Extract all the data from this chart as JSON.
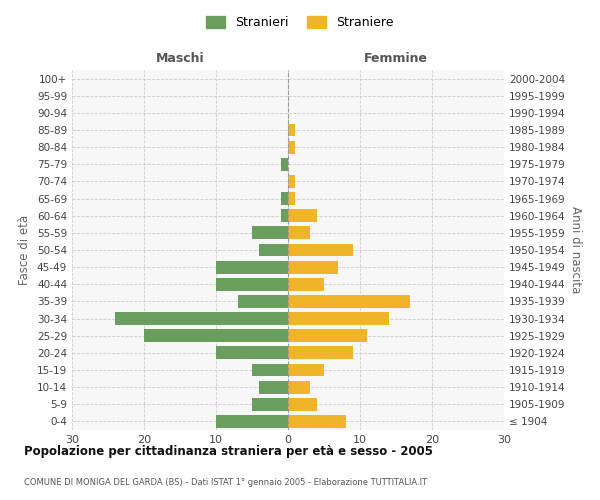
{
  "age_groups": [
    "100+",
    "95-99",
    "90-94",
    "85-89",
    "80-84",
    "75-79",
    "70-74",
    "65-69",
    "60-64",
    "55-59",
    "50-54",
    "45-49",
    "40-44",
    "35-39",
    "30-34",
    "25-29",
    "20-24",
    "15-19",
    "10-14",
    "5-9",
    "0-4"
  ],
  "birth_years": [
    "≤ 1904",
    "1905-1909",
    "1910-1914",
    "1915-1919",
    "1920-1924",
    "1925-1929",
    "1930-1934",
    "1935-1939",
    "1940-1944",
    "1945-1949",
    "1950-1954",
    "1955-1959",
    "1960-1964",
    "1965-1969",
    "1970-1974",
    "1975-1979",
    "1980-1984",
    "1985-1989",
    "1990-1994",
    "1995-1999",
    "2000-2004"
  ],
  "maschi": [
    0,
    0,
    0,
    0,
    0,
    1,
    0,
    1,
    1,
    5,
    4,
    10,
    10,
    7,
    24,
    20,
    10,
    5,
    4,
    5,
    10
  ],
  "femmine": [
    0,
    0,
    0,
    1,
    1,
    0,
    1,
    1,
    4,
    3,
    9,
    7,
    5,
    17,
    14,
    11,
    9,
    5,
    3,
    4,
    8
  ],
  "maschi_color": "#6a9e5f",
  "femmine_color": "#f0b429",
  "title": "Popolazione per cittadinanza straniera per età e sesso - 2005",
  "subtitle": "COMUNE DI MONIGA DEL GARDA (BS) - Dati ISTAT 1° gennaio 2005 - Elaborazione TUTTITALIA.IT",
  "xlabel_left": "Maschi",
  "xlabel_right": "Femmine",
  "ylabel_left": "Fasce di età",
  "ylabel_right": "Anni di nascita",
  "legend_labels": [
    "Stranieri",
    "Straniere"
  ],
  "xlim": 30,
  "background_color": "#ffffff",
  "grid_color": "#cccccc"
}
